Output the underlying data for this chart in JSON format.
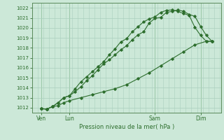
{
  "title": "",
  "xlabel": "Pression niveau de la mer( hPa )",
  "ylabel": "",
  "bg_color": "#cce8d8",
  "grid_color": "#aacfbe",
  "line_color": "#2d6e2d",
  "ylim": [
    1011.5,
    1022.5
  ],
  "yticks": [
    1012,
    1013,
    1014,
    1015,
    1016,
    1017,
    1018,
    1019,
    1020,
    1021,
    1022
  ],
  "xlim": [
    -0.3,
    16.3
  ],
  "day_labels": [
    "Ven",
    "Lun",
    "Sam",
    "Dim"
  ],
  "day_positions": [
    0.5,
    3.0,
    10.5,
    14.5
  ],
  "vline_positions": [
    0.5,
    3.0,
    10.5,
    14.5
  ],
  "series1_x": [
    0.5,
    1.0,
    1.5,
    2.0,
    2.5,
    3.0,
    3.5,
    4.0,
    4.5,
    5.0,
    5.5,
    6.0,
    6.5,
    7.0,
    7.5,
    8.0,
    8.5,
    9.0,
    9.5,
    10.0,
    10.5,
    11.0,
    11.5,
    12.0,
    12.5,
    13.0,
    13.5,
    14.0,
    14.5,
    15.0,
    15.5
  ],
  "series1_y": [
    1011.9,
    1011.85,
    1012.1,
    1012.5,
    1013.0,
    1013.2,
    1013.6,
    1014.1,
    1014.7,
    1015.2,
    1015.8,
    1016.4,
    1016.8,
    1017.3,
    1017.8,
    1018.2,
    1018.8,
    1019.3,
    1019.6,
    1020.5,
    1020.95,
    1021.05,
    1021.55,
    1021.65,
    1021.8,
    1021.65,
    1021.35,
    1021.15,
    1020.15,
    1019.25,
    1018.65
  ],
  "series2_x": [
    0.5,
    1.0,
    1.5,
    2.0,
    2.5,
    3.0,
    3.5,
    4.0,
    4.5,
    5.0,
    5.5,
    6.0,
    6.5,
    7.0,
    7.5,
    8.0,
    8.5,
    9.0,
    9.5,
    10.0,
    10.5,
    11.0,
    11.5,
    12.0,
    12.5,
    13.0,
    13.5,
    14.0,
    14.5,
    15.0,
    15.5
  ],
  "series2_y": [
    1011.9,
    1011.85,
    1012.1,
    1012.5,
    1013.0,
    1013.2,
    1013.9,
    1014.6,
    1015.1,
    1015.6,
    1016.1,
    1016.6,
    1017.3,
    1017.9,
    1018.6,
    1018.9,
    1019.6,
    1020.1,
    1020.6,
    1020.9,
    1021.1,
    1021.55,
    1021.75,
    1021.8,
    1021.65,
    1021.45,
    1021.25,
    1020.05,
    1019.25,
    1018.65,
    1018.65
  ],
  "series3_x": [
    0.5,
    1.0,
    1.5,
    2.0,
    2.5,
    3.0,
    4.0,
    5.0,
    6.0,
    7.0,
    8.0,
    9.0,
    10.0,
    11.0,
    12.0,
    13.0,
    14.0,
    15.0,
    15.5
  ],
  "series3_y": [
    1011.9,
    1011.85,
    1012.1,
    1012.2,
    1012.5,
    1012.7,
    1013.0,
    1013.3,
    1013.6,
    1013.9,
    1014.3,
    1014.9,
    1015.5,
    1016.2,
    1016.9,
    1017.6,
    1018.3,
    1018.65,
    1018.65
  ]
}
